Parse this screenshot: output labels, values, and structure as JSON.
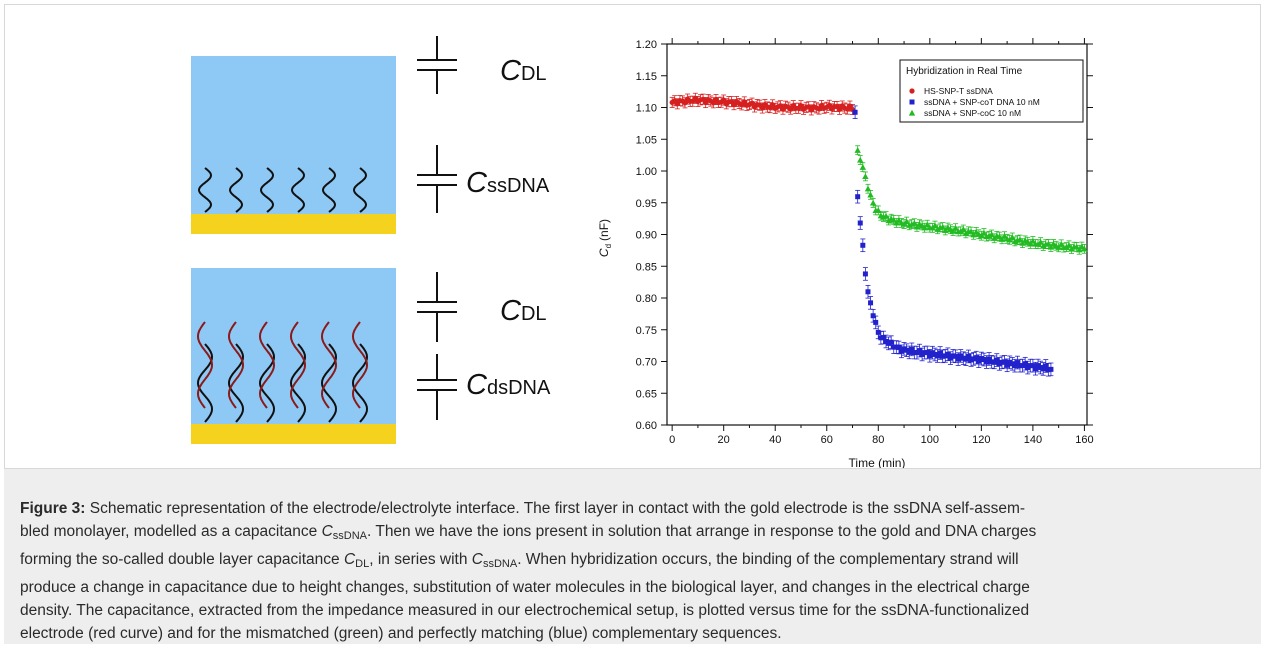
{
  "schematic": {
    "upper": {
      "labels": [
        "DL",
        "ssDNA"
      ],
      "symbol": "C"
    },
    "lower": {
      "labels": [
        "DL",
        "dsDNA"
      ],
      "symbol": "C"
    },
    "colors": {
      "electrolyte": "#8ec9f5",
      "gold": "#f5d21e",
      "ssdna": "#111111",
      "complement": "#8b1a1a"
    }
  },
  "chart_data": {
    "type": "scatter",
    "title": "",
    "legend_title": "Hybridization in Real Time",
    "legend_position": "top-right",
    "xlabel": "Time (min)",
    "ylabel_symbol": "C",
    "ylabel_sub": "d",
    "ylabel_unit": "(nF)",
    "xlim": [
      -2,
      161
    ],
    "ylim": [
      0.6,
      1.2
    ],
    "xticks": [
      0,
      20,
      40,
      60,
      80,
      100,
      120,
      140,
      160
    ],
    "yticks": [
      "0.60",
      "0.65",
      "0.70",
      "0.75",
      "0.80",
      "0.85",
      "0.90",
      "0.95",
      "1.00",
      "1.05",
      "1.10",
      "1.15",
      "1.20"
    ],
    "grid": false,
    "series": [
      {
        "name": "HS-SNP-T ssDNA",
        "color": "#d62020",
        "marker": "circle",
        "x": [
          0,
          5,
          10,
          15,
          20,
          25,
          30,
          35,
          40,
          45,
          50,
          55,
          60,
          65,
          70
        ],
        "y": [
          1.108,
          1.11,
          1.112,
          1.11,
          1.109,
          1.107,
          1.105,
          1.102,
          1.101,
          1.1,
          1.1,
          1.099,
          1.101,
          1.1,
          1.099
        ],
        "err": 0.008
      },
      {
        "name": "ssDNA + SNP-coT DNA 10 nM",
        "color": "#2222cc",
        "marker": "square",
        "x": [
          71,
          72,
          73,
          74,
          75,
          76,
          77,
          78,
          79,
          80,
          82,
          84,
          86,
          88,
          90,
          95,
          100,
          105,
          110,
          115,
          120,
          125,
          130,
          135,
          140,
          145,
          147
        ],
        "y": [
          1.09,
          0.96,
          0.92,
          0.88,
          0.84,
          0.81,
          0.79,
          0.775,
          0.76,
          0.745,
          0.735,
          0.73,
          0.725,
          0.72,
          0.718,
          0.715,
          0.712,
          0.71,
          0.707,
          0.705,
          0.703,
          0.7,
          0.697,
          0.695,
          0.692,
          0.69,
          0.688
        ],
        "err": 0.01
      },
      {
        "name": "ssDNA + SNP-coC 10 nM",
        "color": "#22bb22",
        "marker": "triangle",
        "x": [
          72,
          73,
          74,
          75,
          76,
          77,
          78,
          79,
          80,
          82,
          84,
          86,
          88,
          90,
          95,
          100,
          105,
          110,
          115,
          120,
          125,
          130,
          135,
          140,
          145,
          150,
          155,
          160
        ],
        "y": [
          1.03,
          1.02,
          1.005,
          0.99,
          0.975,
          0.96,
          0.95,
          0.94,
          0.935,
          0.928,
          0.925,
          0.922,
          0.92,
          0.918,
          0.915,
          0.912,
          0.91,
          0.907,
          0.904,
          0.9,
          0.897,
          0.894,
          0.89,
          0.887,
          0.884,
          0.882,
          0.88,
          0.878
        ],
        "err": 0.007
      }
    ]
  },
  "caption": {
    "label": "Figure 3:",
    "p1": " Schematic representation of the electrode/electrolyte interface. The first layer in contact with the gold electrode is the ssDNA self-assem-",
    "p2": "bled monolayer, modelled as a capacitance ",
    "p3": ". Then we have the ions present in solution that arrange in response to the gold and DNA charges",
    "p4": "forming the so-called double layer capacitance ",
    "p5": ", in series with ",
    "p6": ". When hybridization occurs, the binding of the complementary strand will",
    "p7": "produce a change in capacitance due to height changes, substitution of water molecules in the biological layer, and changes in the electrical charge",
    "p8": "density. The capacitance, extracted from the impedance measured in our electrochemical setup, is plotted versus time for the ssDNA-functionalized",
    "p9": "electrode (red curve) and for the mismatched (green) and perfectly matching (blue) complementary sequences.",
    "sym": "C",
    "sub_ss": "ssDNA",
    "sub_dl": "DL"
  }
}
